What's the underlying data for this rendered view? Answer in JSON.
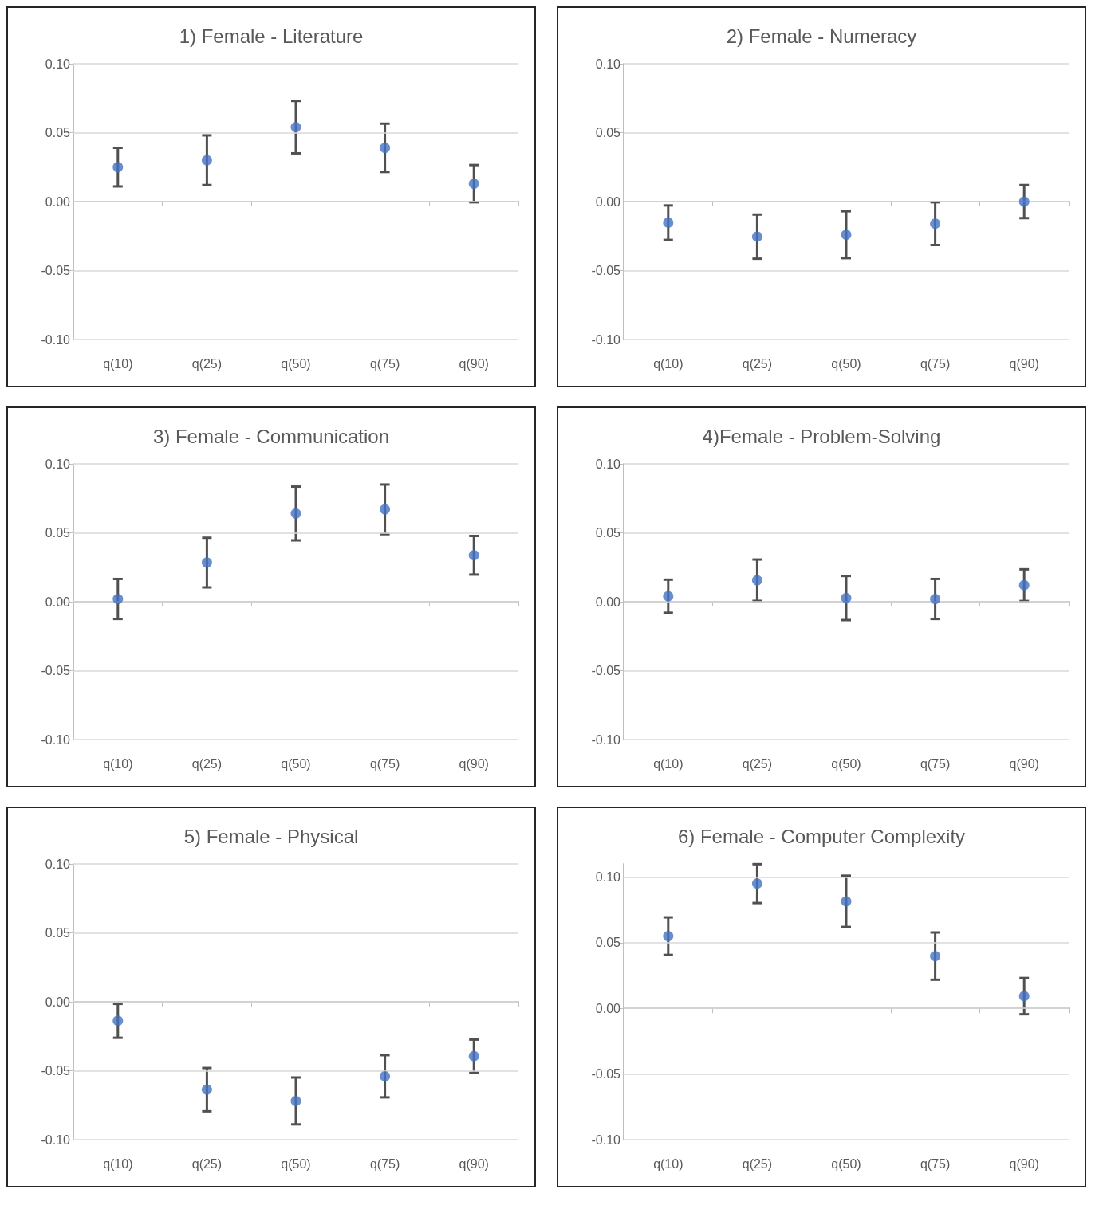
{
  "chart_data": [
    {
      "type": "scatter",
      "title": "1) Female - Literature",
      "categories": [
        "q(10)",
        "q(25)",
        "q(50)",
        "q(75)",
        "q(90)"
      ],
      "values": [
        0.025,
        0.03,
        0.054,
        0.039,
        0.013
      ],
      "errors": [
        0.014,
        0.018,
        0.019,
        0.0175,
        0.0135
      ],
      "color": "#4472c4",
      "marker": "circle",
      "ylim": [
        -0.1,
        0.1
      ],
      "yticks": [
        {
          "value": -0.1,
          "label": "-0.10"
        },
        {
          "value": -0.05,
          "label": "-0.05"
        },
        {
          "value": 0,
          "label": "0.00"
        },
        {
          "value": 0.05,
          "label": "0.05"
        },
        {
          "value": 0.1,
          "label": "0.10"
        }
      ],
      "grid": "y"
    },
    {
      "type": "scatter",
      "title": "2) Female - Numeracy",
      "categories": [
        "q(10)",
        "q(25)",
        "q(50)",
        "q(75)",
        "q(90)"
      ],
      "values": [
        -0.0153,
        -0.0254,
        -0.024,
        -0.016,
        0.0
      ],
      "errors": [
        0.0125,
        0.016,
        0.017,
        0.0155,
        0.012
      ],
      "color": "#4472c4",
      "marker": "circle",
      "ylim": [
        -0.1,
        0.1
      ],
      "yticks": [
        {
          "value": -0.1,
          "label": "-0.10"
        },
        {
          "value": -0.05,
          "label": "-0.05"
        },
        {
          "value": 0,
          "label": "0.00"
        },
        {
          "value": 0.05,
          "label": "0.05"
        },
        {
          "value": 0.1,
          "label": "0.10"
        }
      ],
      "grid": "y"
    },
    {
      "type": "scatter",
      "title": "3) Female - Communication",
      "categories": [
        "q(10)",
        "q(25)",
        "q(50)",
        "q(75)",
        "q(90)"
      ],
      "values": [
        0.002,
        0.0284,
        0.064,
        0.067,
        0.0337
      ],
      "errors": [
        0.0145,
        0.018,
        0.0195,
        0.018,
        0.014
      ],
      "color": "#4472c4",
      "marker": "circle",
      "ylim": [
        -0.1,
        0.1
      ],
      "yticks": [
        {
          "value": -0.1,
          "label": "-0.10"
        },
        {
          "value": -0.05,
          "label": "-0.05"
        },
        {
          "value": 0,
          "label": "0.00"
        },
        {
          "value": 0.05,
          "label": "0.05"
        },
        {
          "value": 0.1,
          "label": "0.10"
        }
      ],
      "grid": "y"
    },
    {
      "type": "scatter",
      "title": "4)Female - Problem-Solving",
      "categories": [
        "q(10)",
        "q(25)",
        "q(50)",
        "q(75)",
        "q(90)"
      ],
      "values": [
        0.004,
        0.0156,
        0.0027,
        0.002,
        0.012
      ],
      "errors": [
        0.012,
        0.015,
        0.016,
        0.0145,
        0.0115
      ],
      "color": "#4472c4",
      "marker": "circle",
      "ylim": [
        -0.1,
        0.1
      ],
      "yticks": [
        {
          "value": -0.1,
          "label": "-0.10"
        },
        {
          "value": -0.05,
          "label": "-0.05"
        },
        {
          "value": 0,
          "label": "0.00"
        },
        {
          "value": 0.05,
          "label": "0.05"
        },
        {
          "value": 0.1,
          "label": "0.10"
        }
      ],
      "grid": "y"
    },
    {
      "type": "scatter",
      "title": "5) Female - Physical",
      "categories": [
        "q(10)",
        "q(25)",
        "q(50)",
        "q(75)",
        "q(90)"
      ],
      "values": [
        -0.0138,
        -0.0637,
        -0.0719,
        -0.054,
        -0.0394
      ],
      "errors": [
        0.0123,
        0.0157,
        0.017,
        0.0153,
        0.012
      ],
      "color": "#4472c4",
      "marker": "circle",
      "ylim": [
        -0.1,
        0.1
      ],
      "yticks": [
        {
          "value": -0.1,
          "label": "-0.10"
        },
        {
          "value": -0.05,
          "label": "-0.05"
        },
        {
          "value": 0,
          "label": "0.00"
        },
        {
          "value": 0.05,
          "label": "0.05"
        },
        {
          "value": 0.1,
          "label": "0.10"
        }
      ],
      "grid": "y"
    },
    {
      "type": "scatter",
      "title": "6) Female - Computer Complexity",
      "categories": [
        "q(10)",
        "q(25)",
        "q(50)",
        "q(75)",
        "q(90)"
      ],
      "values": [
        0.055,
        0.095,
        0.0815,
        0.0398,
        0.0093
      ],
      "errors": [
        0.0143,
        0.0148,
        0.0195,
        0.018,
        0.0138
      ],
      "color": "#4472c4",
      "marker": "circle",
      "ylim": [
        -0.1,
        0.11
      ],
      "yticks": [
        {
          "value": -0.1,
          "label": "-0.10"
        },
        {
          "value": -0.05,
          "label": "-0.05"
        },
        {
          "value": 0,
          "label": "0.00"
        },
        {
          "value": 0.05,
          "label": "0.05"
        },
        {
          "value": 0.1,
          "label": "0.10"
        }
      ],
      "grid": "y"
    }
  ]
}
